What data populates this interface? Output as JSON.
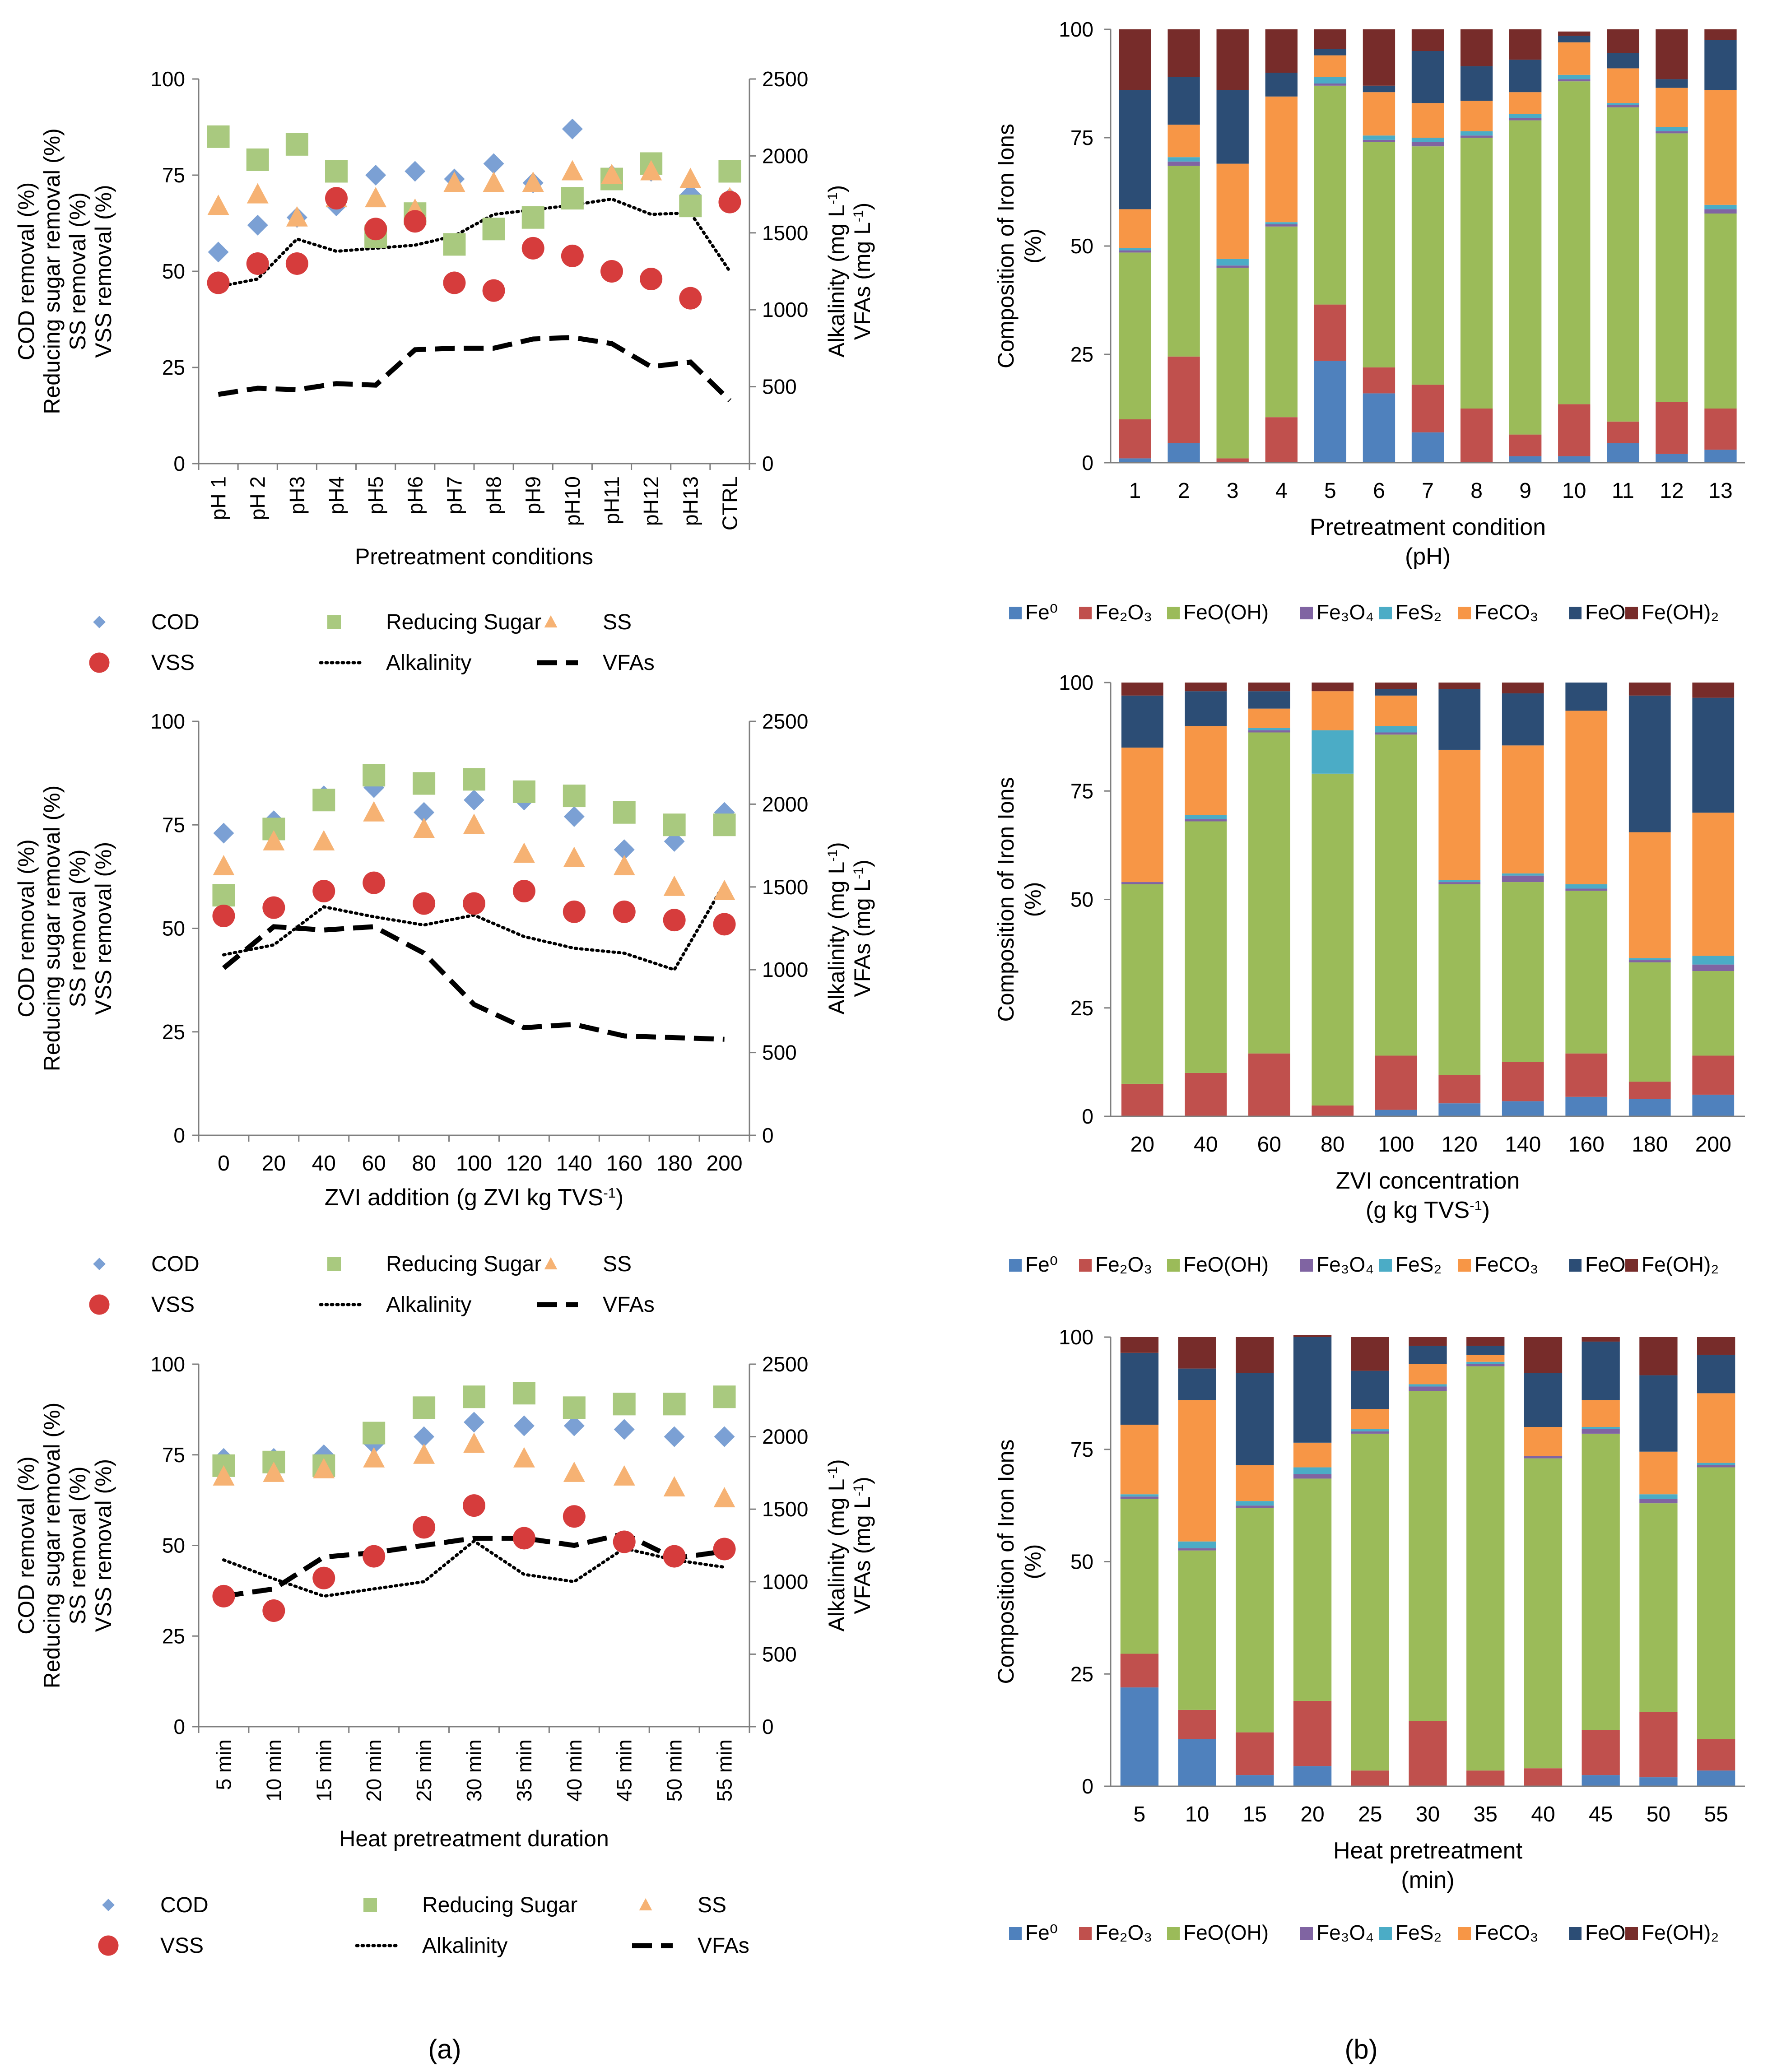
{
  "panel_labels": [
    "(a)",
    "(b)"
  ],
  "colors": {
    "COD": "#7ba0d4",
    "Reducing Sugar": "#a9c97f",
    "SS": "#f6b273",
    "VSS": "#d63c3c",
    "Fe0": "#4f81bd",
    "Fe2O3": "#c0504d",
    "FeOOH": "#9bbb59",
    "Fe3O4": "#8064a2",
    "FeS2": "#4bacc6",
    "FeCO3": "#f79646",
    "FeO": "#2c4d75",
    "FeOH2": "#772c2a"
  },
  "chart_data": [
    {
      "id": "a1",
      "type": "scatter",
      "xlabel": "Pretreatment conditions",
      "ylabel_left": [
        "COD removal (%)",
        "Reducing sugar removal (%)",
        "SS removal (%)",
        "VSS removal (%)"
      ],
      "ylabel_right": [
        "Alkalinity (mg L",
        "VFAs (mg L"
      ],
      "ylim": [
        0,
        100
      ],
      "y2lim": [
        0,
        2500
      ],
      "yticks": [
        "0",
        "25",
        "50",
        "75",
        "100"
      ],
      "y2ticks": [
        "0",
        "500",
        "1000",
        "1500",
        "2000",
        "2500"
      ],
      "categories": [
        "pH 1",
        "pH 2",
        "pH3",
        "pH4",
        "pH5",
        "pH6",
        "pH7",
        "pH8",
        "pH9",
        "pH10",
        "pH11",
        "pH12",
        "pH13",
        "CTRL"
      ],
      "series": [
        {
          "name": "COD",
          "marker": "diamond",
          "values": [
            55,
            62,
            64,
            67,
            75,
            76,
            74,
            78,
            73,
            87,
            75,
            76,
            70,
            69
          ]
        },
        {
          "name": "Reducing Sugar",
          "marker": "square",
          "values": [
            85,
            79,
            83,
            76,
            59,
            65,
            57,
            61,
            64,
            69,
            74,
            78,
            67,
            76
          ]
        },
        {
          "name": "SS",
          "marker": "triangle",
          "values": [
            67,
            70,
            64,
            69,
            69,
            66,
            73,
            73,
            73,
            76,
            75,
            76,
            74,
            69
          ]
        },
        {
          "name": "VSS",
          "marker": "circle",
          "values": [
            47,
            52,
            52,
            69,
            61,
            63,
            47,
            45,
            56,
            54,
            50,
            48,
            43,
            68
          ]
        }
      ],
      "lines": [
        {
          "name": "Alkalinity",
          "style": "dotted",
          "values": [
            1150,
            1200,
            1460,
            1380,
            1400,
            1420,
            1480,
            1620,
            1650,
            1680,
            1720,
            1620,
            1630,
            1250
          ]
        },
        {
          "name": "VFAs",
          "style": "dashed",
          "values": [
            450,
            490,
            480,
            520,
            510,
            740,
            750,
            750,
            810,
            820,
            780,
            630,
            660,
            410
          ]
        }
      ],
      "legend": [
        "COD",
        "Reducing Sugar",
        "SS",
        "VSS",
        "Alkalinity",
        "VFAs"
      ]
    },
    {
      "id": "a2",
      "type": "scatter",
      "xlabel": "ZVI addition (g ZVI kg TVS",
      "xlabel_sup": "-1",
      "xlabel_end": ")",
      "ylabel_left": [
        "COD removal (%)",
        "Reducing sugar removal (%)",
        "SS removal (%)",
        "VSS removal (%)"
      ],
      "ylabel_right": [
        "Alkalinity (mg L",
        "VFAs (mg L"
      ],
      "ylim": [
        0,
        100
      ],
      "y2lim": [
        0,
        2500
      ],
      "yticks": [
        "0",
        "25",
        "50",
        "75",
        "100"
      ],
      "y2ticks": [
        "0",
        "500",
        "1000",
        "1500",
        "2000",
        "2500"
      ],
      "categories": [
        "0",
        "20",
        "40",
        "60",
        "80",
        "100",
        "120",
        "140",
        "160",
        "180",
        "200"
      ],
      "series": [
        {
          "name": "COD",
          "marker": "diamond",
          "values": [
            73,
            76,
            82,
            84,
            78,
            81,
            81,
            77,
            69,
            71,
            78
          ]
        },
        {
          "name": "Reducing Sugar",
          "marker": "square",
          "values": [
            58,
            74,
            81,
            87,
            85,
            86,
            83,
            82,
            78,
            75,
            75
          ]
        },
        {
          "name": "SS",
          "marker": "triangle",
          "values": [
            65,
            71,
            71,
            78,
            74,
            75,
            68,
            67,
            65,
            60,
            59
          ]
        },
        {
          "name": "VSS",
          "marker": "circle",
          "values": [
            53,
            55,
            59,
            61,
            56,
            56,
            59,
            54,
            54,
            52,
            51
          ]
        }
      ],
      "lines": [
        {
          "name": "Alkalinity",
          "style": "dotted",
          "values": [
            1090,
            1150,
            1380,
            1320,
            1270,
            1330,
            1200,
            1130,
            1100,
            1000,
            1520
          ]
        },
        {
          "name": "VFAs",
          "style": "dashed",
          "values": [
            1010,
            1260,
            1240,
            1260,
            1100,
            790,
            650,
            670,
            600,
            590,
            580
          ]
        }
      ],
      "legend": [
        "COD",
        "Reducing Sugar",
        "SS",
        "VSS",
        "Alkalinity",
        "VFAs"
      ]
    },
    {
      "id": "a3",
      "type": "scatter",
      "xlabel": "Heat pretreatment duration",
      "ylabel_left": [
        "COD removal (%)",
        "Reducing sugar removal (%)",
        "SS removal (%)",
        "VSS removal (%)"
      ],
      "ylabel_right": [
        "Alkalinity (mg L",
        "VFAs (mg L"
      ],
      "ylim": [
        0,
        100
      ],
      "y2lim": [
        0,
        2500
      ],
      "yticks": [
        "0",
        "25",
        "50",
        "75",
        "100"
      ],
      "y2ticks": [
        "0",
        "500",
        "1000",
        "1500",
        "2000",
        "2500"
      ],
      "categories": [
        "5 min",
        "10 min",
        "15 min",
        "20 min",
        "25 min",
        "30 min",
        "35 min",
        "40 min",
        "45 min",
        "50 min",
        "55 min"
      ],
      "series": [
        {
          "name": "COD",
          "marker": "diamond",
          "values": [
            74,
            74,
            75,
            78,
            80,
            84,
            83,
            83,
            82,
            80,
            80
          ]
        },
        {
          "name": "Reducing Sugar",
          "marker": "square",
          "values": [
            72,
            73,
            72,
            81,
            88,
            91,
            92,
            88,
            89,
            89,
            91
          ]
        },
        {
          "name": "SS",
          "marker": "triangle",
          "values": [
            69,
            70,
            71,
            74,
            75,
            78,
            74,
            70,
            69,
            66,
            63
          ]
        },
        {
          "name": "VSS",
          "marker": "circle",
          "values": [
            36,
            32,
            41,
            47,
            55,
            61,
            52,
            58,
            51,
            47,
            49
          ]
        }
      ],
      "lines": [
        {
          "name": "Alkalinity",
          "style": "dotted",
          "values": [
            1150,
            1020,
            900,
            950,
            1000,
            1280,
            1050,
            1000,
            1230,
            1150,
            1100
          ]
        },
        {
          "name": "VFAs",
          "style": "dashed",
          "values": [
            900,
            950,
            1170,
            1200,
            1250,
            1300,
            1300,
            1250,
            1330,
            1160,
            1210
          ]
        }
      ],
      "legend": [
        "COD",
        "Reducing Sugar",
        "SS",
        "VSS",
        "Alkalinity",
        "VFAs"
      ]
    },
    {
      "id": "b1",
      "type": "bar",
      "stacked": true,
      "xlabel": "Pretreatment condition",
      "xlabel2": "(pH)",
      "ylabel": [
        "Composition of Iron Ions",
        "(%)"
      ],
      "ylim": [
        0,
        100
      ],
      "yticks": [
        "0",
        "25",
        "50",
        "75",
        "100"
      ],
      "categories": [
        "1",
        "2",
        "3",
        "4",
        "5",
        "6",
        "7",
        "8",
        "9",
        "10",
        "11",
        "12",
        "13"
      ],
      "series": [
        {
          "name": "Fe⁰",
          "values": [
            1,
            4.5,
            0,
            0,
            23.5,
            16,
            7,
            0,
            1.5,
            1.5,
            4.5,
            2,
            3
          ]
        },
        {
          "name": "Fe₂O₃",
          "values": [
            9,
            20,
            1,
            10.5,
            13,
            6,
            11,
            12.5,
            5,
            12,
            5,
            12,
            9.5
          ]
        },
        {
          "name": "FeO(OH)",
          "values": [
            38.5,
            44,
            44,
            44,
            50.5,
            52,
            55,
            62.5,
            72.5,
            74.5,
            72.5,
            62,
            45
          ]
        },
        {
          "name": "Fe₃O₄",
          "values": [
            0.5,
            1,
            0.5,
            0.5,
            0.5,
            0.5,
            1,
            0.5,
            0.5,
            0.5,
            0.5,
            0.5,
            1
          ]
        },
        {
          "name": "FeS₂",
          "values": [
            0.5,
            1,
            1.5,
            0.5,
            1.5,
            1,
            1,
            1,
            1,
            1,
            0.5,
            1,
            1
          ]
        },
        {
          "name": "FeCO₃",
          "values": [
            9,
            7.5,
            22,
            29,
            5,
            10,
            8,
            7,
            5,
            7.5,
            8,
            9,
            26.5
          ]
        },
        {
          "name": "FeO",
          "values": [
            27.5,
            11,
            17,
            5.5,
            1.5,
            1.5,
            12,
            8,
            7.5,
            1.5,
            3.5,
            2,
            11.5
          ]
        },
        {
          "name": "Fe(OH)₂",
          "values": [
            14,
            11,
            14,
            10,
            4.5,
            13,
            5,
            8.5,
            7,
            1,
            5.5,
            11.5,
            2.5
          ]
        }
      ],
      "legend": [
        "Fe⁰",
        "Fe₂O₃",
        "FeO(OH)",
        "Fe₃O₄",
        "FeS₂",
        "FeCO₃",
        "FeO",
        "Fe(OH)₂"
      ]
    },
    {
      "id": "b2",
      "type": "bar",
      "stacked": true,
      "xlabel": "ZVI concentration",
      "xlabel2": "(g kg TVS",
      "xlabel2_sup": "-1",
      "xlabel2_end": ")",
      "ylabel": [
        "Composition of Iron Ions",
        "(%)"
      ],
      "ylim": [
        0,
        100
      ],
      "yticks": [
        "0",
        "25",
        "50",
        "75",
        "100"
      ],
      "categories": [
        "20",
        "40",
        "60",
        "80",
        "100",
        "120",
        "140",
        "160",
        "180",
        "200"
      ],
      "series": [
        {
          "name": "Fe⁰",
          "values": [
            0,
            0,
            0,
            0,
            1.5,
            3,
            3.5,
            4.5,
            4,
            5
          ]
        },
        {
          "name": "Fe₂O₃",
          "values": [
            7.5,
            10,
            14.5,
            2.5,
            12.5,
            6.5,
            9,
            10,
            4,
            9
          ]
        },
        {
          "name": "FeO(OH)",
          "values": [
            46,
            58,
            74,
            76.5,
            74,
            44,
            41.5,
            37.5,
            27.5,
            19.5
          ]
        },
        {
          "name": "Fe₃O₄",
          "values": [
            0.5,
            0.5,
            0.5,
            0,
            0.5,
            0.5,
            1.5,
            0.5,
            0.5,
            1.5
          ]
        },
        {
          "name": "FeS₂",
          "values": [
            0,
            1,
            0.5,
            10,
            1.5,
            0.5,
            0.5,
            1,
            0.5,
            2
          ]
        },
        {
          "name": "FeCO₃",
          "values": [
            31,
            20.5,
            4.5,
            9,
            7,
            30,
            29.5,
            40,
            29,
            33
          ]
        },
        {
          "name": "FeO",
          "values": [
            12,
            8,
            4,
            0,
            1.5,
            14,
            12,
            6.5,
            31.5,
            26.5
          ]
        },
        {
          "name": "Fe(OH)₂",
          "values": [
            3,
            2,
            2,
            2,
            1.5,
            1.5,
            2.5,
            0,
            3,
            3.5
          ]
        }
      ],
      "legend": [
        "Fe⁰",
        "Fe₂O₃",
        "FeO(OH)",
        "Fe₃O₄",
        "FeS₂",
        "FeCO₃",
        "FeO",
        "Fe(OH)₂"
      ]
    },
    {
      "id": "b3",
      "type": "bar",
      "stacked": true,
      "xlabel": "Heat pretreatment",
      "xlabel2": "(min)",
      "ylabel": [
        "Composition of Iron Ions",
        "(%)"
      ],
      "ylim": [
        0,
        100
      ],
      "yticks": [
        "0",
        "25",
        "50",
        "75",
        "100"
      ],
      "categories": [
        "5",
        "10",
        "15",
        "20",
        "25",
        "30",
        "35",
        "40",
        "45",
        "50",
        "55"
      ],
      "series": [
        {
          "name": "Fe⁰",
          "values": [
            22,
            10.5,
            2.5,
            4.5,
            0,
            0,
            0,
            0,
            2.5,
            2,
            3.5
          ]
        },
        {
          "name": "Fe₂O₃",
          "values": [
            7.5,
            6.5,
            9.5,
            14.5,
            3.5,
            14.5,
            3.5,
            4,
            10,
            14.5,
            7
          ]
        },
        {
          "name": "FeO(OH)",
          "values": [
            34.5,
            35.5,
            50,
            49.5,
            75,
            73.5,
            90,
            69,
            66,
            46.5,
            60.5
          ]
        },
        {
          "name": "Fe₃O₄",
          "values": [
            0.5,
            0.5,
            0.5,
            1,
            0.5,
            1,
            0.5,
            0.5,
            1,
            1,
            0.5
          ]
        },
        {
          "name": "FeS₂",
          "values": [
            0.5,
            1.5,
            1,
            1.5,
            0.5,
            0.5,
            0.5,
            0,
            0.5,
            1,
            0.5
          ]
        },
        {
          "name": "FeCO₃",
          "values": [
            15.5,
            31.5,
            8,
            5.5,
            4.5,
            4.5,
            1.5,
            6.5,
            6,
            9.5,
            15.5
          ]
        },
        {
          "name": "FeO",
          "values": [
            16,
            7,
            20.5,
            23.5,
            8.5,
            4,
            2,
            12,
            13,
            17,
            8.5
          ]
        },
        {
          "name": "Fe(OH)₂",
          "values": [
            3.5,
            7,
            8,
            0.5,
            7.5,
            2,
            2,
            8,
            1,
            8.5,
            4
          ]
        }
      ],
      "legend": [
        "Fe⁰",
        "Fe₂O₃",
        "FeO(OH)",
        "Fe₃O₄",
        "FeS₂",
        "FeCO₃",
        "FeO",
        "Fe(OH)₂"
      ]
    }
  ]
}
